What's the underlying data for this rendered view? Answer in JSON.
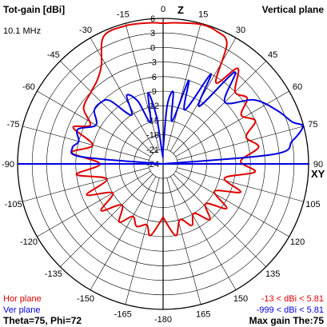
{
  "header": {
    "title": "Tot-gain [dBi]",
    "plane": "Vertical plane",
    "frequency": "10.1 MHz"
  },
  "footer": {
    "theta_phi": "Theta=75, Phi=72",
    "max_gain": "Max gain The:75"
  },
  "legend": {
    "hor_label": "Hor plane",
    "ver_label": "Ver plane",
    "hor_range": "-13 < dBi < 5.81",
    "ver_range": "-999 < dBi < 5.81"
  },
  "axis_letters": {
    "z": "Z",
    "xy": "XY"
  },
  "colors": {
    "hor": "#e00000",
    "ver": "#0000e0",
    "grid": "#000000",
    "text": "#000000"
  },
  "chart_data": {
    "type": "polar",
    "angle_labels": [
      {
        "deg": 0,
        "text": "0"
      },
      {
        "deg": 15,
        "text": "15"
      },
      {
        "deg": 30,
        "text": "30"
      },
      {
        "deg": 45,
        "text": "45"
      },
      {
        "deg": 60,
        "text": "60"
      },
      {
        "deg": 75,
        "text": "75"
      },
      {
        "deg": 90,
        "text": "90"
      },
      {
        "deg": 105,
        "text": "105"
      },
      {
        "deg": 120,
        "text": "120"
      },
      {
        "deg": 135,
        "text": "135"
      },
      {
        "deg": 150,
        "text": "150"
      },
      {
        "deg": 165,
        "text": "165"
      },
      {
        "deg": 180,
        "text": "-180"
      },
      {
        "deg": -165,
        "text": "-165"
      },
      {
        "deg": -150,
        "text": "-150"
      },
      {
        "deg": -135,
        "text": "-135"
      },
      {
        "deg": -120,
        "text": "-120"
      },
      {
        "deg": -105,
        "text": "-105"
      },
      {
        "deg": -90,
        "text": "-90"
      },
      {
        "deg": -75,
        "text": "-75"
      },
      {
        "deg": -60,
        "text": "-60"
      },
      {
        "deg": -45,
        "text": "-45"
      },
      {
        "deg": -30,
        "text": "-30"
      },
      {
        "deg": -15,
        "text": "-15"
      }
    ],
    "radial_tick_labels": [
      "6",
      "3",
      "0",
      "-3",
      "-6",
      "-9",
      "-12",
      "-15",
      "-18",
      "-21",
      "-24"
    ],
    "rlim": [
      -24,
      6
    ],
    "series": [
      {
        "name": "Hor plane",
        "points": [
          {
            "deg": -180,
            "dbi": -13
          },
          {
            "deg": -170,
            "dbi": -9
          },
          {
            "deg": -165,
            "dbi": -11
          },
          {
            "deg": -157,
            "dbi": -10
          },
          {
            "deg": -150,
            "dbi": -11.5
          },
          {
            "deg": -143,
            "dbi": -9
          },
          {
            "deg": -135,
            "dbi": -12
          },
          {
            "deg": -127,
            "dbi": -8
          },
          {
            "deg": -120,
            "dbi": -12
          },
          {
            "deg": -112,
            "dbi": -7
          },
          {
            "deg": -105,
            "dbi": -12
          },
          {
            "deg": -97,
            "dbi": -6
          },
          {
            "deg": -90,
            "dbi": -11
          },
          {
            "deg": -83,
            "dbi": -5
          },
          {
            "deg": -75,
            "dbi": -9
          },
          {
            "deg": -68,
            "dbi": -4
          },
          {
            "deg": -62,
            "dbi": -7
          },
          {
            "deg": -55,
            "dbi": -4
          },
          {
            "deg": -45,
            "dbi": -3
          },
          {
            "deg": -38,
            "dbi": -2
          },
          {
            "deg": -32,
            "dbi": 0
          },
          {
            "deg": -25,
            "dbi": 5
          },
          {
            "deg": -15,
            "dbi": 5.5
          },
          {
            "deg": -5,
            "dbi": 5.2
          },
          {
            "deg": 0,
            "dbi": 5
          },
          {
            "deg": 5,
            "dbi": 5.2
          },
          {
            "deg": 15,
            "dbi": 5.8
          },
          {
            "deg": 22,
            "dbi": 5.5
          },
          {
            "deg": 28,
            "dbi": 4
          },
          {
            "deg": 33,
            "dbi": -4
          },
          {
            "deg": 38,
            "dbi": 1
          },
          {
            "deg": 45,
            "dbi": -3
          },
          {
            "deg": 52,
            "dbi": -2
          },
          {
            "deg": 58,
            "dbi": -5
          },
          {
            "deg": 65,
            "dbi": -3
          },
          {
            "deg": 72,
            "dbi": -6
          },
          {
            "deg": 80,
            "dbi": -4
          },
          {
            "deg": 88,
            "dbi": -8
          },
          {
            "deg": 95,
            "dbi": -5
          },
          {
            "deg": 103,
            "dbi": -11
          },
          {
            "deg": 110,
            "dbi": -7
          },
          {
            "deg": 118,
            "dbi": -12
          },
          {
            "deg": 125,
            "dbi": -8
          },
          {
            "deg": 133,
            "dbi": -12
          },
          {
            "deg": 140,
            "dbi": -9
          },
          {
            "deg": 148,
            "dbi": -12
          },
          {
            "deg": 155,
            "dbi": -10
          },
          {
            "deg": 163,
            "dbi": -12
          },
          {
            "deg": 170,
            "dbi": -9
          },
          {
            "deg": 180,
            "dbi": -13
          }
        ]
      },
      {
        "name": "Ver plane",
        "points": [
          {
            "deg": -90,
            "dbi": -24
          },
          {
            "deg": -85,
            "dbi": -7
          },
          {
            "deg": -80,
            "dbi": -5
          },
          {
            "deg": -75,
            "dbi": -6
          },
          {
            "deg": -68,
            "dbi": -5
          },
          {
            "deg": -60,
            "dbi": -8
          },
          {
            "deg": -52,
            "dbi": -6
          },
          {
            "deg": -45,
            "dbi": -6
          },
          {
            "deg": -40,
            "dbi": -7
          },
          {
            "deg": -33,
            "dbi": -12
          },
          {
            "deg": -28,
            "dbi": -8
          },
          {
            "deg": -22,
            "dbi": -10
          },
          {
            "deg": -17,
            "dbi": -15
          },
          {
            "deg": -12,
            "dbi": -9
          },
          {
            "deg": -8,
            "dbi": -14
          },
          {
            "deg": -4,
            "dbi": -22
          },
          {
            "deg": 0,
            "dbi": -21
          },
          {
            "deg": 4,
            "dbi": -12
          },
          {
            "deg": 8,
            "dbi": -9
          },
          {
            "deg": 12,
            "dbi": -15
          },
          {
            "deg": 17,
            "dbi": -6
          },
          {
            "deg": 22,
            "dbi": -12
          },
          {
            "deg": 28,
            "dbi": -3
          },
          {
            "deg": 32,
            "dbi": -10
          },
          {
            "deg": 38,
            "dbi": 0
          },
          {
            "deg": 45,
            "dbi": -6
          },
          {
            "deg": 55,
            "dbi": -1
          },
          {
            "deg": 65,
            "dbi": 2
          },
          {
            "deg": 72,
            "dbi": 4
          },
          {
            "deg": 75,
            "dbi": 5.81
          },
          {
            "deg": 80,
            "dbi": 3
          },
          {
            "deg": 85,
            "dbi": -1
          },
          {
            "deg": 90,
            "dbi": -24
          }
        ]
      }
    ]
  }
}
